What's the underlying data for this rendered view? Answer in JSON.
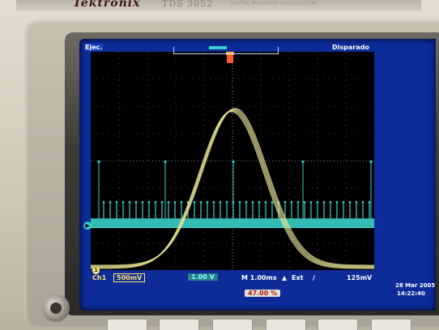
{
  "device": {
    "brand": "Tektronix",
    "model": "TDS 3052",
    "model_subtitle": "DIGITAL PHOSPHOR OSCILLOSCOPE"
  },
  "screen": {
    "top_left": "Ejec.",
    "top_right": "Disparado",
    "channel": "Ch1",
    "volts_per_div": "500mV",
    "ch2_value": "1.00 V",
    "timebase": "M 1.00ms",
    "trigger_source": "Ext",
    "trigger_level": "125mV",
    "date": "28 Mar 2005",
    "time": "14:22:40",
    "cursor_readout": "47.00 %",
    "ch1_marker": "1"
  },
  "colors": {
    "screen_background": "#0d2c9a",
    "graticule_background": "#000000",
    "yellow_trace": "#e8e49a",
    "cyan_trace": "#3ad0c8",
    "trigger_marker": "#ff5a2a"
  }
}
